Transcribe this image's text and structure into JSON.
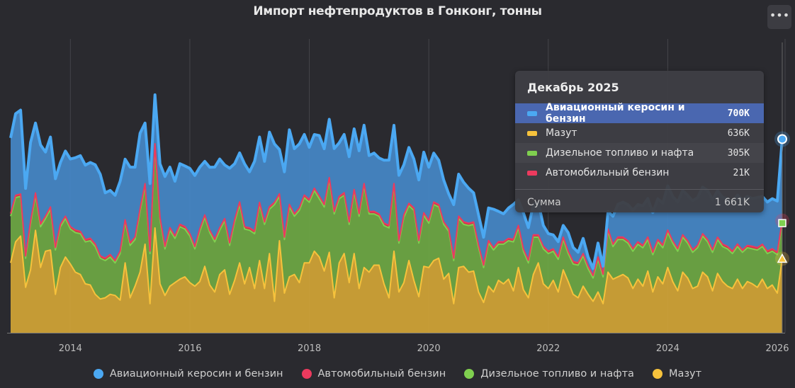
{
  "title": "Импорт нефтепродуктов в Гонконг, тонны",
  "menu_icon": "ellipsis-icon",
  "tooltip": {
    "header": "Декабрь 2025",
    "rows": [
      {
        "label": "Авиационный керосин и бензин",
        "value": "700K",
        "color": "#4ba8f2",
        "highlighted": true
      },
      {
        "label": "Мазут",
        "value": "636K",
        "color": "#f6c23c"
      },
      {
        "label": "Дизельное топливо и нафта",
        "value": "305K",
        "color": "#7fcf4f"
      },
      {
        "label": "Автомобильный бензин",
        "value": "21K",
        "color": "#ec3a5e"
      }
    ],
    "sum_label": "Сумма",
    "sum_value": "1 661K"
  },
  "chart_data": {
    "type": "area",
    "stacked": true,
    "title": "Импорт нефтепродуктов в Гонконг, тонны",
    "x_start": "2013-01",
    "x_end": "2025-12",
    "x_frequency": "monthly",
    "x_ticks": [
      "2014",
      "2016",
      "2018",
      "2020",
      "2022",
      "2024",
      "2026"
    ],
    "y_unit": "K tonnes",
    "ylim": [
      0,
      2400
    ],
    "y_axis_visible": false,
    "grid": "vertical",
    "legend": "bottom",
    "series": [
      {
        "name": "Мазут",
        "line": "#f6c23c",
        "fill": "#d3a536",
        "values": [
          600,
          780,
          830,
          390,
          540,
          880,
          560,
          700,
          710,
          330,
          560,
          650,
          590,
          520,
          500,
          420,
          410,
          330,
          290,
          300,
          330,
          320,
          280,
          600,
          300,
          400,
          520,
          760,
          250,
          900,
          420,
          320,
          400,
          430,
          460,
          480,
          430,
          400,
          440,
          570,
          410,
          350,
          500,
          540,
          330,
          450,
          600,
          420,
          560,
          380,
          620,
          380,
          680,
          270,
          790,
          340,
          480,
          500,
          430,
          600,
          600,
          700,
          650,
          530,
          690,
          300,
          600,
          680,
          430,
          680,
          380,
          560,
          520,
          580,
          580,
          420,
          300,
          700,
          350,
          430,
          620,
          450,
          310,
          570,
          560,
          620,
          640,
          460,
          510,
          250,
          560,
          570,
          520,
          530,
          350,
          260,
          400,
          350,
          450,
          420,
          460,
          360,
          560,
          370,
          300,
          500,
          600,
          420,
          380,
          450,
          350,
          540,
          440,
          330,
          300,
          400,
          330,
          270,
          350,
          250,
          520,
          460,
          480,
          500,
          470,
          380,
          460,
          400,
          530,
          350,
          480,
          420,
          560,
          440,
          360,
          520,
          470,
          380,
          400,
          520,
          480,
          360,
          510,
          440,
          400,
          380,
          460,
          380,
          440,
          420,
          390,
          460,
          380,
          410,
          340,
          636
        ]
      },
      {
        "name": "Дизельное топливо и нафта",
        "line": "#7fcf4f",
        "fill": "#6ea844",
        "values": [
          400,
          380,
          340,
          250,
          390,
          300,
          350,
          280,
          350,
          380,
          350,
          330,
          300,
          340,
          350,
          360,
          380,
          410,
          350,
          320,
          320,
          280,
          400,
          350,
          450,
          400,
          520,
          500,
          430,
          700,
          550,
          400,
          480,
          380,
          450,
          410,
          400,
          320,
          430,
          420,
          450,
          430,
          380,
          420,
          420,
          500,
          500,
          470,
          320,
          470,
          480,
          550,
          380,
          830,
          380,
          460,
          600,
          500,
          620,
          560,
          520,
          520,
          500,
          550,
          620,
          720,
          550,
          500,
          500,
          530,
          620,
          700,
          500,
          440,
          420,
          500,
          600,
          560,
          420,
          560,
          470,
          600,
          460,
          440,
          380,
          480,
          440,
          470,
          360,
          370,
          420,
          360,
          400,
          400,
          380,
          300,
          370,
          360,
          310,
          340,
          330,
          420,
          340,
          330,
          300,
          320,
          220,
          300,
          300,
          250,
          280,
          260,
          240,
          260,
          280,
          260,
          220,
          200,
          280,
          230,
          350,
          280,
          320,
          300,
          300,
          320,
          300,
          330,
          270,
          320,
          300,
          310,
          300,
          330,
          340,
          300,
          300,
          310,
          330,
          310,
          300,
          330,
          290,
          300,
          320,
          300,
          280,
          310,
          290,
          300,
          320,
          280,
          300,
          290,
          330,
          305
        ]
      },
      {
        "name": "Автомобильный бензин",
        "line": "#ec3a5e",
        "fill": "#d8344f",
        "values": [
          22,
          20,
          21,
          19,
          23,
          20,
          22,
          21,
          20,
          22,
          21,
          20,
          21,
          22,
          20,
          19,
          21,
          22,
          20,
          21,
          22,
          20,
          21,
          20,
          22,
          21,
          23,
          20,
          21,
          22,
          20,
          21,
          22,
          20,
          21,
          22,
          21,
          20,
          22,
          21,
          20,
          22,
          21,
          20,
          22,
          21,
          23,
          20,
          21,
          22,
          20,
          21,
          22,
          20,
          23,
          21,
          22,
          20,
          21,
          22,
          22,
          21,
          23,
          20,
          22,
          21,
          20,
          22,
          21,
          20,
          22,
          21,
          21,
          22,
          20,
          21,
          22,
          20,
          21,
          22,
          20,
          21,
          22,
          20,
          21,
          22,
          20,
          21,
          22,
          20,
          21,
          22,
          20,
          21,
          22,
          20,
          21,
          20,
          22,
          21,
          20,
          22,
          21,
          20,
          22,
          21,
          20,
          22,
          21,
          20,
          22,
          21,
          20,
          22,
          21,
          20,
          22,
          21,
          20,
          22,
          21,
          20,
          22,
          21,
          20,
          22,
          21,
          20,
          22,
          21,
          20,
          22,
          21,
          20,
          22,
          21,
          20,
          22,
          21,
          20,
          22,
          21,
          20,
          22,
          21,
          20,
          22,
          21,
          20,
          22,
          21,
          20,
          22,
          21,
          20,
          21
        ]
      },
      {
        "name": "Авиационный керосин и бензин",
        "line": "#4ba8f2",
        "fill": "#4588c8",
        "values": [
          650,
          700,
          720,
          580,
          680,
          600,
          680,
          550,
          600,
          590,
          530,
          560,
          580,
          620,
          650,
          640,
          650,
          680,
          700,
          560,
          550,
          560,
          600,
          520,
          650,
          600,
          650,
          520,
          580,
          420,
          460,
          600,
          520,
          470,
          520,
          520,
          560,
          610,
          530,
          460,
          540,
          620,
          590,
          460,
          640,
          480,
          420,
          540,
          480,
          600,
          560,
          520,
          640,
          500,
          380,
          560,
          640,
          560,
          550,
          520,
          450,
          460,
          520,
          480,
          500,
          540,
          460,
          500,
          560,
          520,
          540,
          500,
          480,
          500,
          480,
          540,
          560,
          500,
          560,
          430,
          480,
          420,
          520,
          520,
          460,
          420,
          380,
          360,
          300,
          460,
          360,
          340,
          300,
          250,
          260,
          240,
          280,
          330,
          260,
          240,
          260,
          300,
          220,
          310,
          280,
          260,
          280,
          180,
          150,
          120,
          130,
          100,
          160,
          120,
          90,
          130,
          80,
          60,
          120,
          70,
          150,
          240,
          280,
          300,
          310,
          330,
          320,
          340,
          330,
          340,
          350,
          360,
          380,
          380,
          400,
          380,
          390,
          420,
          410,
          400,
          420,
          430,
          400,
          400,
          410,
          420,
          420,
          430,
          420,
          410,
          430,
          410,
          420,
          430,
          440,
          700
        ]
      }
    ]
  },
  "legend": [
    {
      "label": "Авиационный керосин и бензин",
      "color": "#4ba8f2"
    },
    {
      "label": "Автомобильный бензин",
      "color": "#ec3a5e"
    },
    {
      "label": "Дизельное топливо и нафта",
      "color": "#7fcf4f"
    },
    {
      "label": "Мазут",
      "color": "#f6c23c"
    }
  ]
}
